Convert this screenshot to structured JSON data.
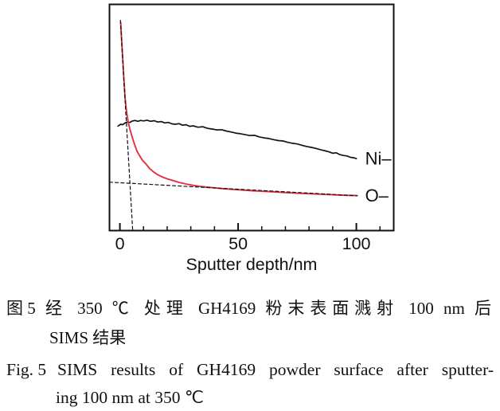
{
  "figure": {
    "chart_data": {
      "type": "line",
      "title": "",
      "xlabel": "Sputter depth/nm",
      "ylabel": "",
      "xlim": [
        -4.4,
        115.8
      ],
      "ylim": [
        0,
        1
      ],
      "x_major_ticks": [
        0,
        50,
        100
      ],
      "x_tick_labels": [
        "0",
        "50",
        "100"
      ],
      "x_minor_ticks": [
        10,
        20,
        30,
        40,
        60,
        70,
        80,
        90,
        110
      ],
      "grid": false,
      "legend_position": "labels-at-curve-end",
      "y_units": "intensity (arbitrary, unlabeled axis)",
      "series": [
        {
          "name": "Ni",
          "label": "Ni–",
          "color": "#141414",
          "line_style": "solid",
          "points": [
            [
              -0.8,
              0.462
            ],
            [
              0.3,
              0.47
            ],
            [
              1.2,
              0.468
            ],
            [
              2.2,
              0.476
            ],
            [
              3.2,
              0.48
            ],
            [
              4.2,
              0.478
            ],
            [
              5.2,
              0.484
            ],
            [
              6.4,
              0.487
            ],
            [
              7.6,
              0.483
            ],
            [
              8.8,
              0.487
            ],
            [
              10,
              0.485
            ],
            [
              11.5,
              0.488
            ],
            [
              13,
              0.483
            ],
            [
              14.5,
              0.486
            ],
            [
              16,
              0.48
            ],
            [
              17.5,
              0.482
            ],
            [
              19,
              0.476
            ],
            [
              20.5,
              0.478
            ],
            [
              22,
              0.472
            ],
            [
              23.5,
              0.47
            ],
            [
              25,
              0.473
            ],
            [
              26.5,
              0.466
            ],
            [
              28,
              0.468
            ],
            [
              29.5,
              0.461
            ],
            [
              31,
              0.463
            ],
            [
              33,
              0.457
            ],
            [
              35,
              0.459
            ],
            [
              37,
              0.452
            ],
            [
              39,
              0.449
            ],
            [
              41,
              0.445
            ],
            [
              43,
              0.446
            ],
            [
              45,
              0.44
            ],
            [
              47,
              0.436
            ],
            [
              49,
              0.431
            ],
            [
              51,
              0.428
            ],
            [
              53,
              0.424
            ],
            [
              55,
              0.42
            ],
            [
              57,
              0.421
            ],
            [
              59,
              0.414
            ],
            [
              61,
              0.41
            ],
            [
              63,
              0.407
            ],
            [
              65,
              0.402
            ],
            [
              67,
              0.398
            ],
            [
              69,
              0.396
            ],
            [
              71,
              0.39
            ],
            [
              73,
              0.386
            ],
            [
              75,
              0.383
            ],
            [
              77,
              0.377
            ],
            [
              79,
              0.372
            ],
            [
              81,
              0.368
            ],
            [
              83,
              0.363
            ],
            [
              85,
              0.357
            ],
            [
              87,
              0.352
            ],
            [
              88.5,
              0.348
            ],
            [
              90,
              0.342
            ],
            [
              91.5,
              0.344
            ],
            [
              93,
              0.336
            ],
            [
              94.5,
              0.332
            ],
            [
              96,
              0.33
            ],
            [
              97.5,
              0.324
            ],
            [
              99,
              0.322
            ],
            [
              100,
              0.318
            ]
          ]
        },
        {
          "name": "O",
          "label": "O–",
          "color": "#e1303f",
          "line_style": "solid",
          "points": [
            [
              0.35,
              0.92
            ],
            [
              0.8,
              0.835
            ],
            [
              1.25,
              0.75
            ],
            [
              1.7,
              0.67
            ],
            [
              2.15,
              0.59
            ],
            [
              2.6,
              0.545
            ],
            [
              3.1,
              0.505
            ],
            [
              3.6,
              0.475
            ],
            [
              4.2,
              0.45
            ],
            [
              4.9,
              0.425
            ],
            [
              5.6,
              0.4
            ],
            [
              6.4,
              0.375
            ],
            [
              7.3,
              0.35
            ],
            [
              8.4,
              0.33
            ],
            [
              9.6,
              0.31
            ],
            [
              11,
              0.295
            ],
            [
              12.5,
              0.275
            ],
            [
              14.2,
              0.26
            ],
            [
              16,
              0.247
            ],
            [
              18,
              0.237
            ],
            [
              20,
              0.229
            ],
            [
              22.5,
              0.221
            ],
            [
              25,
              0.213
            ],
            [
              28,
              0.206
            ],
            [
              31,
              0.2
            ],
            [
              34,
              0.195
            ],
            [
              37,
              0.192
            ],
            [
              40,
              0.189
            ],
            [
              44,
              0.185
            ],
            [
              48,
              0.182
            ],
            [
              52,
              0.179
            ],
            [
              56,
              0.176
            ],
            [
              60,
              0.174
            ],
            [
              65,
              0.171
            ],
            [
              70,
              0.168
            ],
            [
              75,
              0.165
            ],
            [
              80,
              0.163
            ],
            [
              85,
              0.161
            ],
            [
              90,
              0.158
            ],
            [
              95,
              0.156
            ],
            [
              100,
              0.155
            ]
          ]
        },
        {
          "name": "oxide-tangent-steep",
          "label": "",
          "color": "#111111",
          "line_style": "dashed",
          "points": [
            [
              0.2,
              0.93
            ],
            [
              5.4,
              0.005
            ]
          ]
        },
        {
          "name": "oxide-tangent-baseline",
          "label": "",
          "color": "#111111",
          "line_style": "dashed",
          "points": [
            [
              -4.4,
              0.214
            ],
            [
              100.5,
              0.154
            ]
          ]
        }
      ]
    },
    "caption_zh": {
      "label": "图 5",
      "line1": "经 350 ℃ 处理 GH4169 粉末表面溅射 100 nm 后",
      "line2": "SIMS 结果"
    },
    "caption_en": {
      "label": "Fig. 5",
      "line1": "SIMS results of GH4169 powder surface after sputter-",
      "line2": "ing 100 nm at 350 ℃"
    }
  }
}
